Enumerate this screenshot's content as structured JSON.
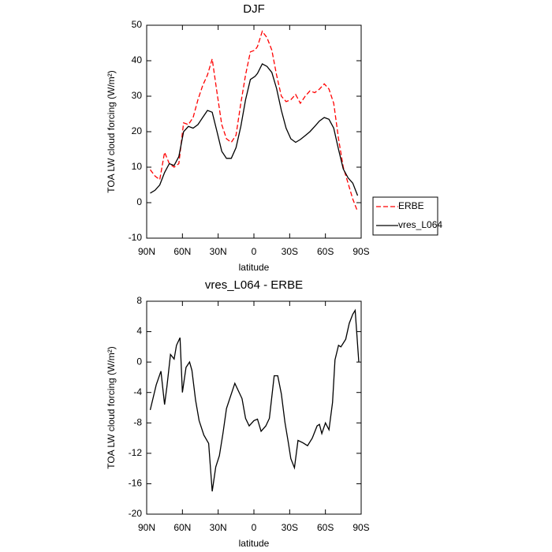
{
  "chart_data": [
    {
      "type": "line",
      "title": "DJF",
      "xlabel": "latitude",
      "ylabel": "TOA LW cloud forcing (W/m²)",
      "x": [
        87,
        83,
        79,
        75,
        71,
        67,
        63,
        59,
        55,
        51,
        47,
        43,
        39,
        35,
        31,
        27,
        23,
        19,
        15,
        11,
        7,
        3,
        -1,
        -3,
        -7,
        -11,
        -15,
        -19,
        -23,
        -27,
        -31,
        -35,
        -39,
        -43,
        -47,
        -51,
        -55,
        -59,
        -63,
        -67,
        -71,
        -75,
        -79,
        -83,
        -87
      ],
      "series": [
        {
          "name": "ERBE",
          "color": "#ff0000",
          "line_style": "dashed",
          "values": [
            9.3,
            7.5,
            6.5,
            14.2,
            11,
            10,
            11,
            22.5,
            22,
            24,
            29,
            33,
            36,
            40.5,
            31,
            22,
            18,
            17,
            19,
            28,
            36,
            42.5,
            43,
            44,
            48.3,
            46.5,
            43,
            36,
            30,
            28.5,
            29,
            30.5,
            28,
            30,
            31.5,
            31,
            32,
            33.5,
            32,
            28,
            18,
            10,
            5.5,
            1,
            -2.5
          ]
        },
        {
          "name": "vres_L064",
          "color": "#000000",
          "line_style": "solid",
          "values": [
            2.7,
            3.5,
            5,
            8.5,
            11,
            10.5,
            13,
            20,
            21.5,
            21,
            22,
            24,
            26,
            25.5,
            20,
            14.5,
            12.5,
            12.5,
            15.5,
            21.5,
            29,
            34.7,
            35.6,
            36.4,
            39.1,
            38.4,
            36.7,
            32.2,
            26,
            21,
            18,
            17,
            17.8,
            18.9,
            20,
            21.5,
            23,
            24,
            23.5,
            21,
            15,
            9.5,
            7,
            5.5,
            2
          ]
        }
      ],
      "xlim": [
        90,
        -90
      ],
      "xticks": [
        {
          "value": 90,
          "label": "90N"
        },
        {
          "value": 60,
          "label": "60N"
        },
        {
          "value": 30,
          "label": "30N"
        },
        0,
        {
          "value": -30,
          "label": "30S"
        },
        {
          "value": -60,
          "label": "60S"
        },
        {
          "value": -90,
          "label": "90S"
        }
      ],
      "ylim": [
        -10,
        50
      ],
      "yticks": [
        -10,
        0,
        10,
        20,
        30,
        40,
        50
      ],
      "legend": "right"
    },
    {
      "type": "line",
      "title": "vres_L064 - ERBE",
      "xlabel": "latitude",
      "ylabel": "TOA LW cloud forcing (W/m²)",
      "x": [
        87,
        82,
        78,
        75,
        73,
        70,
        67,
        65,
        62,
        60,
        57,
        54,
        52,
        49,
        46,
        42,
        38,
        35,
        32,
        29,
        26,
        23,
        16,
        10,
        7,
        4,
        0,
        -3,
        -6,
        -10,
        -13,
        -17,
        -20,
        -23,
        -26,
        -29,
        -31,
        -34,
        -37,
        -41,
        -45,
        -49,
        -53,
        -55,
        -57,
        -60,
        -63,
        -66,
        -68,
        -71,
        -73,
        -77,
        -80,
        -83,
        -85,
        -88
      ],
      "values": [
        -6.3,
        -3,
        -1.2,
        -5.6,
        -3.2,
        1,
        0.4,
        2.2,
        3.2,
        -4,
        -0.7,
        0,
        -1.1,
        -5,
        -7.7,
        -9.6,
        -10.7,
        -17,
        -13.8,
        -12.3,
        -9.4,
        -6.1,
        -2.8,
        -4.8,
        -7.4,
        -8.4,
        -7.7,
        -7.5,
        -9.1,
        -8.4,
        -7.4,
        -1.8,
        -1.8,
        -4.2,
        -7.9,
        -10.7,
        -12.7,
        -13.9,
        -10.3,
        -10.6,
        -11,
        -10,
        -8.4,
        -8.2,
        -9.4,
        -8,
        -8.9,
        -5.3,
        0.3,
        2.2,
        2,
        3,
        5.1,
        6.3,
        6.8,
        0
      ],
      "color": "#000000",
      "xlim": [
        90,
        -90
      ],
      "xticks": [
        {
          "value": 90,
          "label": "90N"
        },
        {
          "value": 60,
          "label": "60N"
        },
        {
          "value": 30,
          "label": "30N"
        },
        0,
        {
          "value": -30,
          "label": "30S"
        },
        {
          "value": -60,
          "label": "60S"
        },
        {
          "value": -90,
          "label": "90S"
        }
      ],
      "ylim": [
        -20,
        8
      ],
      "yticks": [
        -20,
        -16,
        -12,
        -8,
        -4,
        0,
        4,
        8
      ]
    }
  ]
}
